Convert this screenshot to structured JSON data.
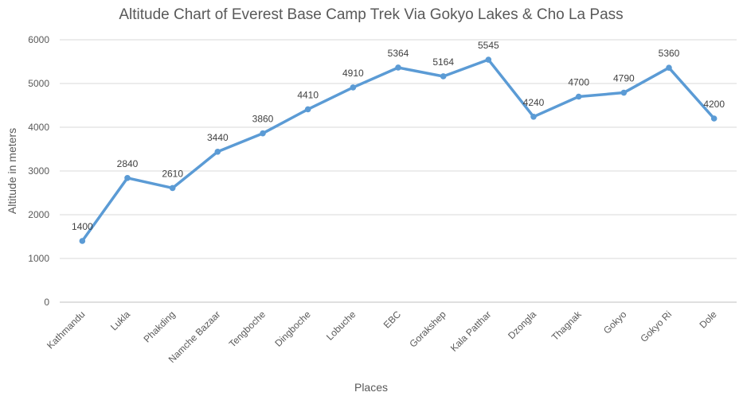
{
  "chart_data": {
    "type": "line",
    "title": "Altitude Chart of Everest Base Camp Trek Via Gokyo Lakes & Cho La Pass",
    "xlabel": "Places",
    "ylabel": "Altitude in meters",
    "categories": [
      "Kathmandu",
      "Lukla",
      "Phakding",
      "Namche Bazaar",
      "Tengboche",
      "Dingboche",
      "Lobuche",
      "EBC",
      "Gorakshep",
      "Kala Patthar",
      "Dzongla",
      "Thagnak",
      "Gokyo",
      "Gokyo Ri",
      "Dole"
    ],
    "series": [
      {
        "values": [
          1400,
          2840,
          2610,
          3440,
          3860,
          4410,
          4910,
          5364,
          5164,
          5545,
          4240,
          4700,
          4790,
          5360,
          4200
        ]
      }
    ],
    "ylim": [
      0,
      6000
    ],
    "yticks": [
      0,
      1000,
      2000,
      3000,
      4000,
      5000,
      6000
    ],
    "grid": true,
    "legend": "none",
    "data_labels": true,
    "colors": {
      "line": "#5b9bd5",
      "grid": "#d9d9d9",
      "text": "#595959"
    }
  }
}
